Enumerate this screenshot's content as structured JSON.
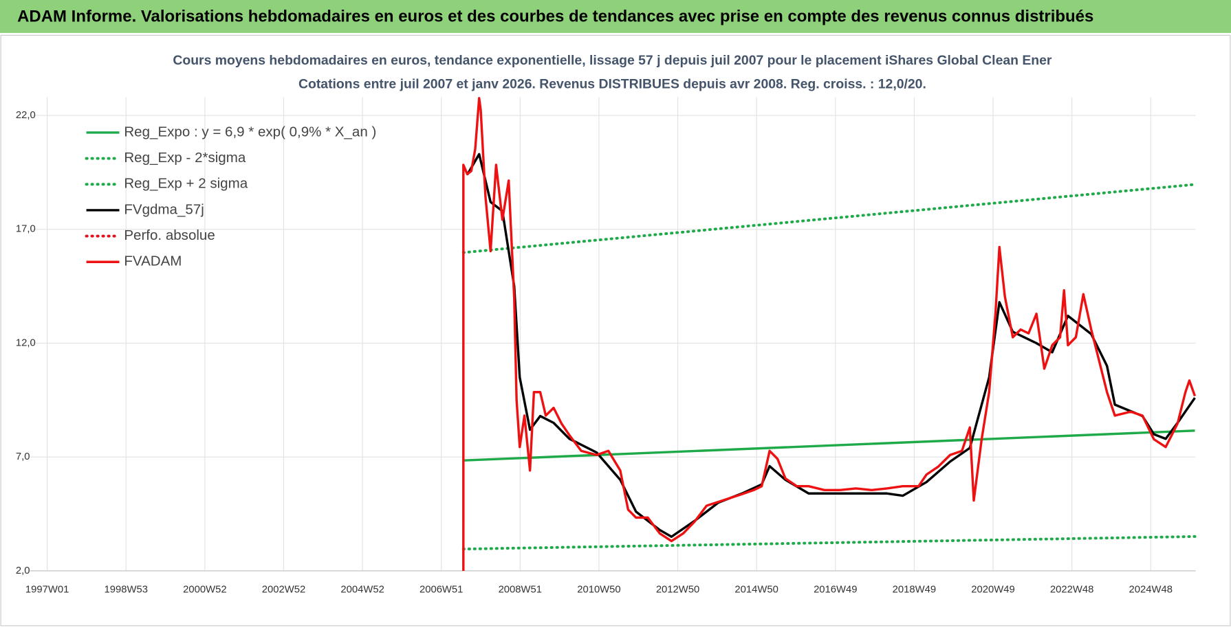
{
  "header": {
    "title": "ADAM Informe. Valorisations hebdomadaires en euros et des courbes de tendances avec prise en compte des revenus connus distribués"
  },
  "chart_data": {
    "type": "line",
    "title": "Cours moyens hebdomadaires en euros, tendance exponentielle, lissage 57 j depuis juil 2007 pour le placement iShares Global Clean Ener",
    "subtitle": "Cotations entre juil 2007 et janv 2026. Revenus DISTRIBUES depuis avr 2008. Reg. croiss. : 12,0/20.",
    "xlim": [
      1996.56,
      2026.14
    ],
    "xticks": [
      {
        "value": 1997,
        "label": "1997W01"
      },
      {
        "value": 1999,
        "label": "1998W53"
      },
      {
        "value": 2001,
        "label": "2000W52"
      },
      {
        "value": 2003,
        "label": "2002W52"
      },
      {
        "value": 2005,
        "label": "2004W52"
      },
      {
        "value": 2007,
        "label": "2006W51"
      },
      {
        "value": 2009,
        "label": "2008W51"
      },
      {
        "value": 2011,
        "label": "2010W50"
      },
      {
        "value": 2013,
        "label": "2012W50"
      },
      {
        "value": 2015,
        "label": "2014W50"
      },
      {
        "value": 2017,
        "label": "2016W49"
      },
      {
        "value": 2019,
        "label": "2018W49"
      },
      {
        "value": 2021,
        "label": "2020W49"
      },
      {
        "value": 2023,
        "label": "2022W48"
      },
      {
        "value": 2025,
        "label": "2024W48"
      }
    ],
    "ylim": [
      2,
      22.8
    ],
    "yticks": [
      {
        "value": 2,
        "label": "2,0"
      },
      {
        "value": 7,
        "label": "7,0"
      },
      {
        "value": 12,
        "label": "12,0"
      },
      {
        "value": 17,
        "label": "17,0"
      },
      {
        "value": 22,
        "label": "22,0"
      }
    ],
    "grid": true,
    "legend": "top-left",
    "series": [
      {
        "name": "Reg_Expo : y = 6,9 * exp( 0,9% *  X_an )",
        "color": "#1faa4a",
        "style": "solid",
        "x": [
          2007.56,
          2026.12
        ],
        "values": [
          6.85,
          8.16
        ]
      },
      {
        "name": "Reg_Exp - 2*sigma",
        "color": "#1faa4a",
        "style": "dotted",
        "x": [
          2007.56,
          2026.12
        ],
        "values": [
          2.96,
          3.51
        ]
      },
      {
        "name": "Reg_Exp + 2 sigma",
        "color": "#1faa4a",
        "style": "dotted",
        "x": [
          2007.56,
          2026.12
        ],
        "values": [
          15.98,
          18.97
        ]
      },
      {
        "name": "FVgdma_57j",
        "color": "#000000",
        "style": "solid",
        "x": [
          2007.66,
          2007.96,
          2008.25,
          2008.55,
          2008.85,
          2008.99,
          2009.25,
          2009.51,
          2009.85,
          2010.25,
          2010.94,
          2011.54,
          2011.94,
          2012.54,
          2012.84,
          2013.43,
          2014.03,
          2014.63,
          2015.13,
          2015.33,
          2015.73,
          2016.32,
          2017.12,
          2018.31,
          2018.71,
          2019.31,
          2019.91,
          2020.41,
          2020.9,
          2021.16,
          2021.5,
          2022.1,
          2022.5,
          2022.9,
          2023.49,
          2023.89,
          2024.09,
          2024.79,
          2025.08,
          2025.38,
          2025.68,
          2026.12
        ],
        "values": [
          19.4,
          20.3,
          18.2,
          17.8,
          14.5,
          10.5,
          8.2,
          8.8,
          8.5,
          7.8,
          7.2,
          6.0,
          4.6,
          3.8,
          3.5,
          4.2,
          5.0,
          5.4,
          5.8,
          6.6,
          6.0,
          5.4,
          5.4,
          5.4,
          5.3,
          5.9,
          6.8,
          7.4,
          10.5,
          13.8,
          12.5,
          12.0,
          11.6,
          13.2,
          12.4,
          11.0,
          9.3,
          8.8,
          8.0,
          7.8,
          8.5,
          9.6
        ]
      },
      {
        "name": "Perfo. absolue",
        "color": "#e0141e",
        "style": "dotted",
        "x": [],
        "values": []
      },
      {
        "name": "FVADAM",
        "color": "#ee1111",
        "style": "solid",
        "x": [
          2007.56,
          2007.56,
          2007.66,
          2007.76,
          2007.86,
          2007.96,
          2008.0,
          2008.12,
          2008.25,
          2008.39,
          2008.55,
          2008.71,
          2008.85,
          2008.91,
          2008.99,
          2009.11,
          2009.25,
          2009.35,
          2009.51,
          2009.65,
          2009.85,
          2010.05,
          2010.25,
          2010.55,
          2010.94,
          2011.24,
          2011.54,
          2011.74,
          2011.94,
          2012.24,
          2012.54,
          2012.84,
          2013.14,
          2013.43,
          2013.73,
          2014.03,
          2014.33,
          2014.63,
          2014.93,
          2015.13,
          2015.33,
          2015.53,
          2015.73,
          2016.02,
          2016.32,
          2016.72,
          2017.12,
          2017.52,
          2017.92,
          2018.31,
          2018.71,
          2019.11,
          2019.31,
          2019.61,
          2019.91,
          2020.21,
          2020.41,
          2020.51,
          2020.71,
          2020.9,
          2021.06,
          2021.16,
          2021.3,
          2021.5,
          2021.7,
          2021.9,
          2022.1,
          2022.3,
          2022.5,
          2022.7,
          2022.8,
          2022.9,
          2023.1,
          2023.29,
          2023.49,
          2023.69,
          2023.89,
          2024.09,
          2024.49,
          2024.79,
          2025.08,
          2025.38,
          2025.68,
          2025.88,
          2025.98,
          2026.12
        ],
        "values": [
          2.0,
          19.83,
          19.42,
          19.56,
          20.52,
          22.76,
          22.24,
          18.45,
          16.04,
          19.83,
          17.42,
          19.14,
          13.98,
          9.5,
          7.44,
          8.82,
          6.41,
          9.85,
          9.85,
          8.82,
          9.16,
          8.47,
          7.96,
          7.27,
          7.09,
          7.27,
          6.41,
          4.69,
          4.34,
          4.34,
          3.65,
          3.31,
          3.65,
          4.17,
          4.86,
          5.03,
          5.2,
          5.37,
          5.55,
          5.72,
          7.27,
          6.92,
          6.06,
          5.72,
          5.72,
          5.55,
          5.55,
          5.62,
          5.55,
          5.62,
          5.72,
          5.72,
          6.23,
          6.58,
          7.09,
          7.27,
          8.3,
          5.09,
          7.78,
          9.85,
          13.29,
          16.22,
          14.04,
          12.26,
          12.6,
          12.43,
          13.29,
          10.88,
          11.91,
          12.26,
          14.32,
          11.91,
          12.26,
          14.15,
          12.6,
          11.23,
          9.85,
          8.82,
          8.99,
          8.82,
          7.78,
          7.44,
          8.47,
          9.85,
          10.36,
          9.68
        ]
      }
    ]
  }
}
